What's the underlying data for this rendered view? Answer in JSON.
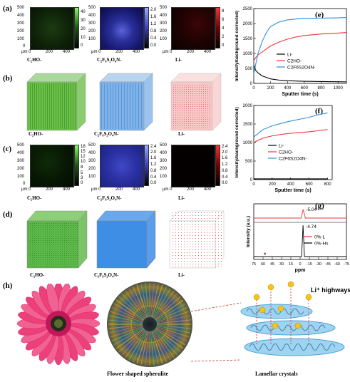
{
  "panel_labels": {
    "a": "(a)",
    "b": "(b)",
    "c": "(c)",
    "d": "(d)",
    "e": "(e)",
    "f": "(f)",
    "g": "(g)",
    "h": "(h)"
  },
  "maps_a": {
    "yticks": [
      "500",
      "400",
      "300",
      "200",
      "100",
      "0"
    ],
    "xticks": [
      "μm 0",
      "200",
      "400"
    ],
    "captions": [
      "C₂HO-",
      "C₂F₆S₂O₄N-",
      "Li-"
    ],
    "cbar1": [
      "40",
      "30",
      "20",
      "10",
      "0"
    ],
    "cbar2": [
      "2.0",
      "1.6",
      "1.2",
      "0.8",
      "0.4",
      "0.0"
    ],
    "cbar3": [
      "8",
      "6",
      "4",
      "2",
      "0"
    ]
  },
  "cubes_b": {
    "captions": [
      "C₂HO-",
      "C₂F₆S₂O₄N-",
      "Li-"
    ]
  },
  "maps_c": {
    "yticks": [
      "500",
      "400",
      "300",
      "200",
      "100",
      "0"
    ],
    "xticks": [
      "μm 0",
      "200",
      "400"
    ],
    "captions": [
      "C₂HO-",
      "C₂F₆S₂O₄N-",
      "Li-"
    ],
    "cbar1": [
      "18",
      "15",
      "12",
      "10",
      "8",
      "5",
      "3",
      "0"
    ],
    "cbar2": [
      "2.4",
      "2.0",
      "1.6",
      "1.2",
      "0.8",
      "0.4",
      "0.0"
    ],
    "cbar3": [
      "2.4",
      "2.0",
      "1.6",
      "1.2",
      "0.8",
      "0.4",
      "0.0"
    ]
  },
  "cubes_d": {
    "captions": [
      "C₂HO-",
      "C₂F₆S₂O₄N-",
      "Li-"
    ]
  },
  "colors": {
    "li": "#000000",
    "c2ho": "#e8363a",
    "tfsi": "#2d8fdc",
    "green": "#3cb043",
    "blue": "#4a90e2",
    "red": "#e04040"
  },
  "chart_data": [
    {
      "type": "line",
      "panel": "e",
      "xlabel": "Sputter time (s)",
      "ylabel": "Intensity/background corrected)",
      "xlim": [
        0,
        1100
      ],
      "ylim": [
        0,
        2500
      ],
      "xticks": [
        0,
        200,
        400,
        600,
        800,
        1000
      ],
      "yticks": [
        0,
        500,
        1000,
        1500,
        2000,
        2500
      ],
      "series": [
        {
          "name": "Li-",
          "color": "#000000",
          "x": [
            0,
            20,
            50,
            100,
            150,
            200,
            300,
            400,
            500,
            600,
            800,
            1000,
            1100
          ],
          "y": [
            600,
            450,
            350,
            250,
            200,
            150,
            110,
            90,
            80,
            70,
            60,
            55,
            50
          ]
        },
        {
          "name": "C2HO-",
          "color": "#e8363a",
          "x": [
            0,
            20,
            50,
            100,
            150,
            200,
            300,
            400,
            500,
            600,
            800,
            1000,
            1100
          ],
          "y": [
            750,
            850,
            950,
            1050,
            1150,
            1250,
            1380,
            1480,
            1550,
            1600,
            1650,
            1680,
            1700
          ]
        },
        {
          "name": "C2F6S2O4N-",
          "color": "#2d8fdc",
          "x": [
            0,
            20,
            50,
            100,
            150,
            200,
            300,
            400,
            500,
            600,
            800,
            1000,
            1100
          ],
          "y": [
            300,
            600,
            1000,
            1400,
            1700,
            1900,
            2050,
            2120,
            2150,
            2170,
            2180,
            2190,
            2200
          ]
        }
      ]
    },
    {
      "type": "line",
      "panel": "f",
      "xlabel": "Sputter time (s)",
      "ylabel": "Intensity/background corrected)",
      "xlim": [
        0,
        850
      ],
      "ylim": [
        0,
        2000
      ],
      "xticks": [
        0,
        200,
        400,
        600,
        800
      ],
      "yticks": [
        0,
        500,
        1000,
        1500,
        2000
      ],
      "series": [
        {
          "name": "Li-",
          "color": "#000000",
          "x": [
            0,
            100,
            200,
            300,
            400,
            500,
            600,
            700,
            800
          ],
          "y": [
            20,
            20,
            20,
            20,
            20,
            20,
            20,
            20,
            20
          ]
        },
        {
          "name": "C2HO-",
          "color": "#e8363a",
          "x": [
            0,
            100,
            200,
            300,
            400,
            500,
            600,
            700,
            800
          ],
          "y": [
            1000,
            1120,
            1180,
            1220,
            1250,
            1270,
            1290,
            1320,
            1350
          ]
        },
        {
          "name": "C2F6S2O4N-",
          "color": "#2d8fdc",
          "x": [
            0,
            100,
            200,
            300,
            400,
            500,
            600,
            700,
            800
          ],
          "y": [
            1150,
            1350,
            1450,
            1520,
            1580,
            1630,
            1680,
            1750,
            1800
          ]
        }
      ]
    },
    {
      "type": "line",
      "panel": "g",
      "xlabel": "ppm",
      "ylabel": "Intensity (a.u.)",
      "xlim": [
        -75,
        75
      ],
      "xticks": [
        -75,
        -60,
        -45,
        -30,
        -15,
        0,
        15,
        30,
        45,
        60,
        75
      ],
      "peak_labels": [
        "-5.04",
        "-4.74"
      ],
      "series": [
        {
          "name": "0%-L",
          "color": "#e8363a",
          "peak": -5.04
        },
        {
          "name": "0%-Hs",
          "color": "#000000",
          "peak": -4.74
        }
      ]
    }
  ],
  "panel_h": {
    "caption_left": "Flower shaped spherulite",
    "caption_right": "Lamellar crystals",
    "highway_label": "Li⁺ highways",
    "ion_label": "Li⁺"
  }
}
